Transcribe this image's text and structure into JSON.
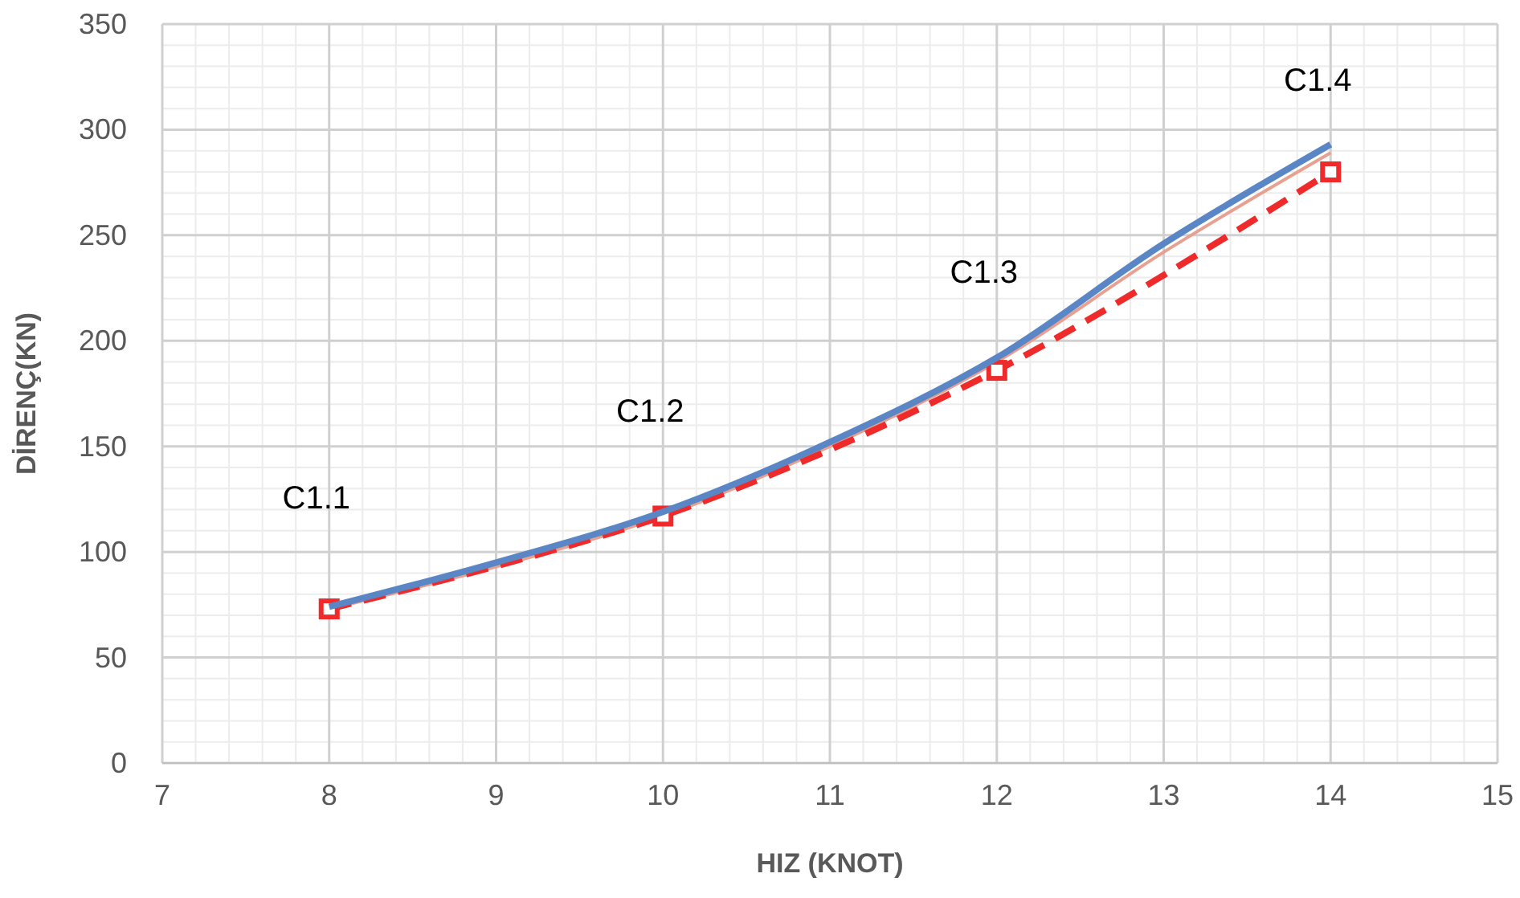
{
  "chart_data": {
    "type": "line",
    "xlabel": "HIZ (KNOT)",
    "ylabel": "DİRENÇ(KN)",
    "xlim": [
      7,
      15
    ],
    "ylim": [
      0,
      350
    ],
    "xticks": [
      7,
      8,
      9,
      10,
      11,
      12,
      13,
      14,
      15
    ],
    "yticks": [
      0,
      50,
      100,
      150,
      200,
      250,
      300,
      350
    ],
    "grid": true,
    "series": [
      {
        "color": "#e8a090",
        "x": [
          8,
          9,
          10,
          11,
          12,
          13,
          14
        ],
        "values": [
          73,
          93,
          117,
          150,
          190,
          242,
          289
        ],
        "line_style": "solid",
        "marker": "none"
      },
      {
        "color": "#ee2a2a",
        "x": [
          8,
          10,
          12,
          14
        ],
        "values": [
          73,
          117,
          186,
          280
        ],
        "line_style": "dashed",
        "marker": "square"
      },
      {
        "color": "#5b86c5",
        "x": [
          8,
          9,
          10,
          11,
          12,
          13,
          14
        ],
        "values": [
          74,
          95,
          119,
          152,
          192,
          246,
          293
        ],
        "line_style": "solid",
        "marker": "none"
      }
    ],
    "annotations": [
      "C1.1",
      "C1.2",
      "C1.3",
      "C1.4"
    ]
  }
}
